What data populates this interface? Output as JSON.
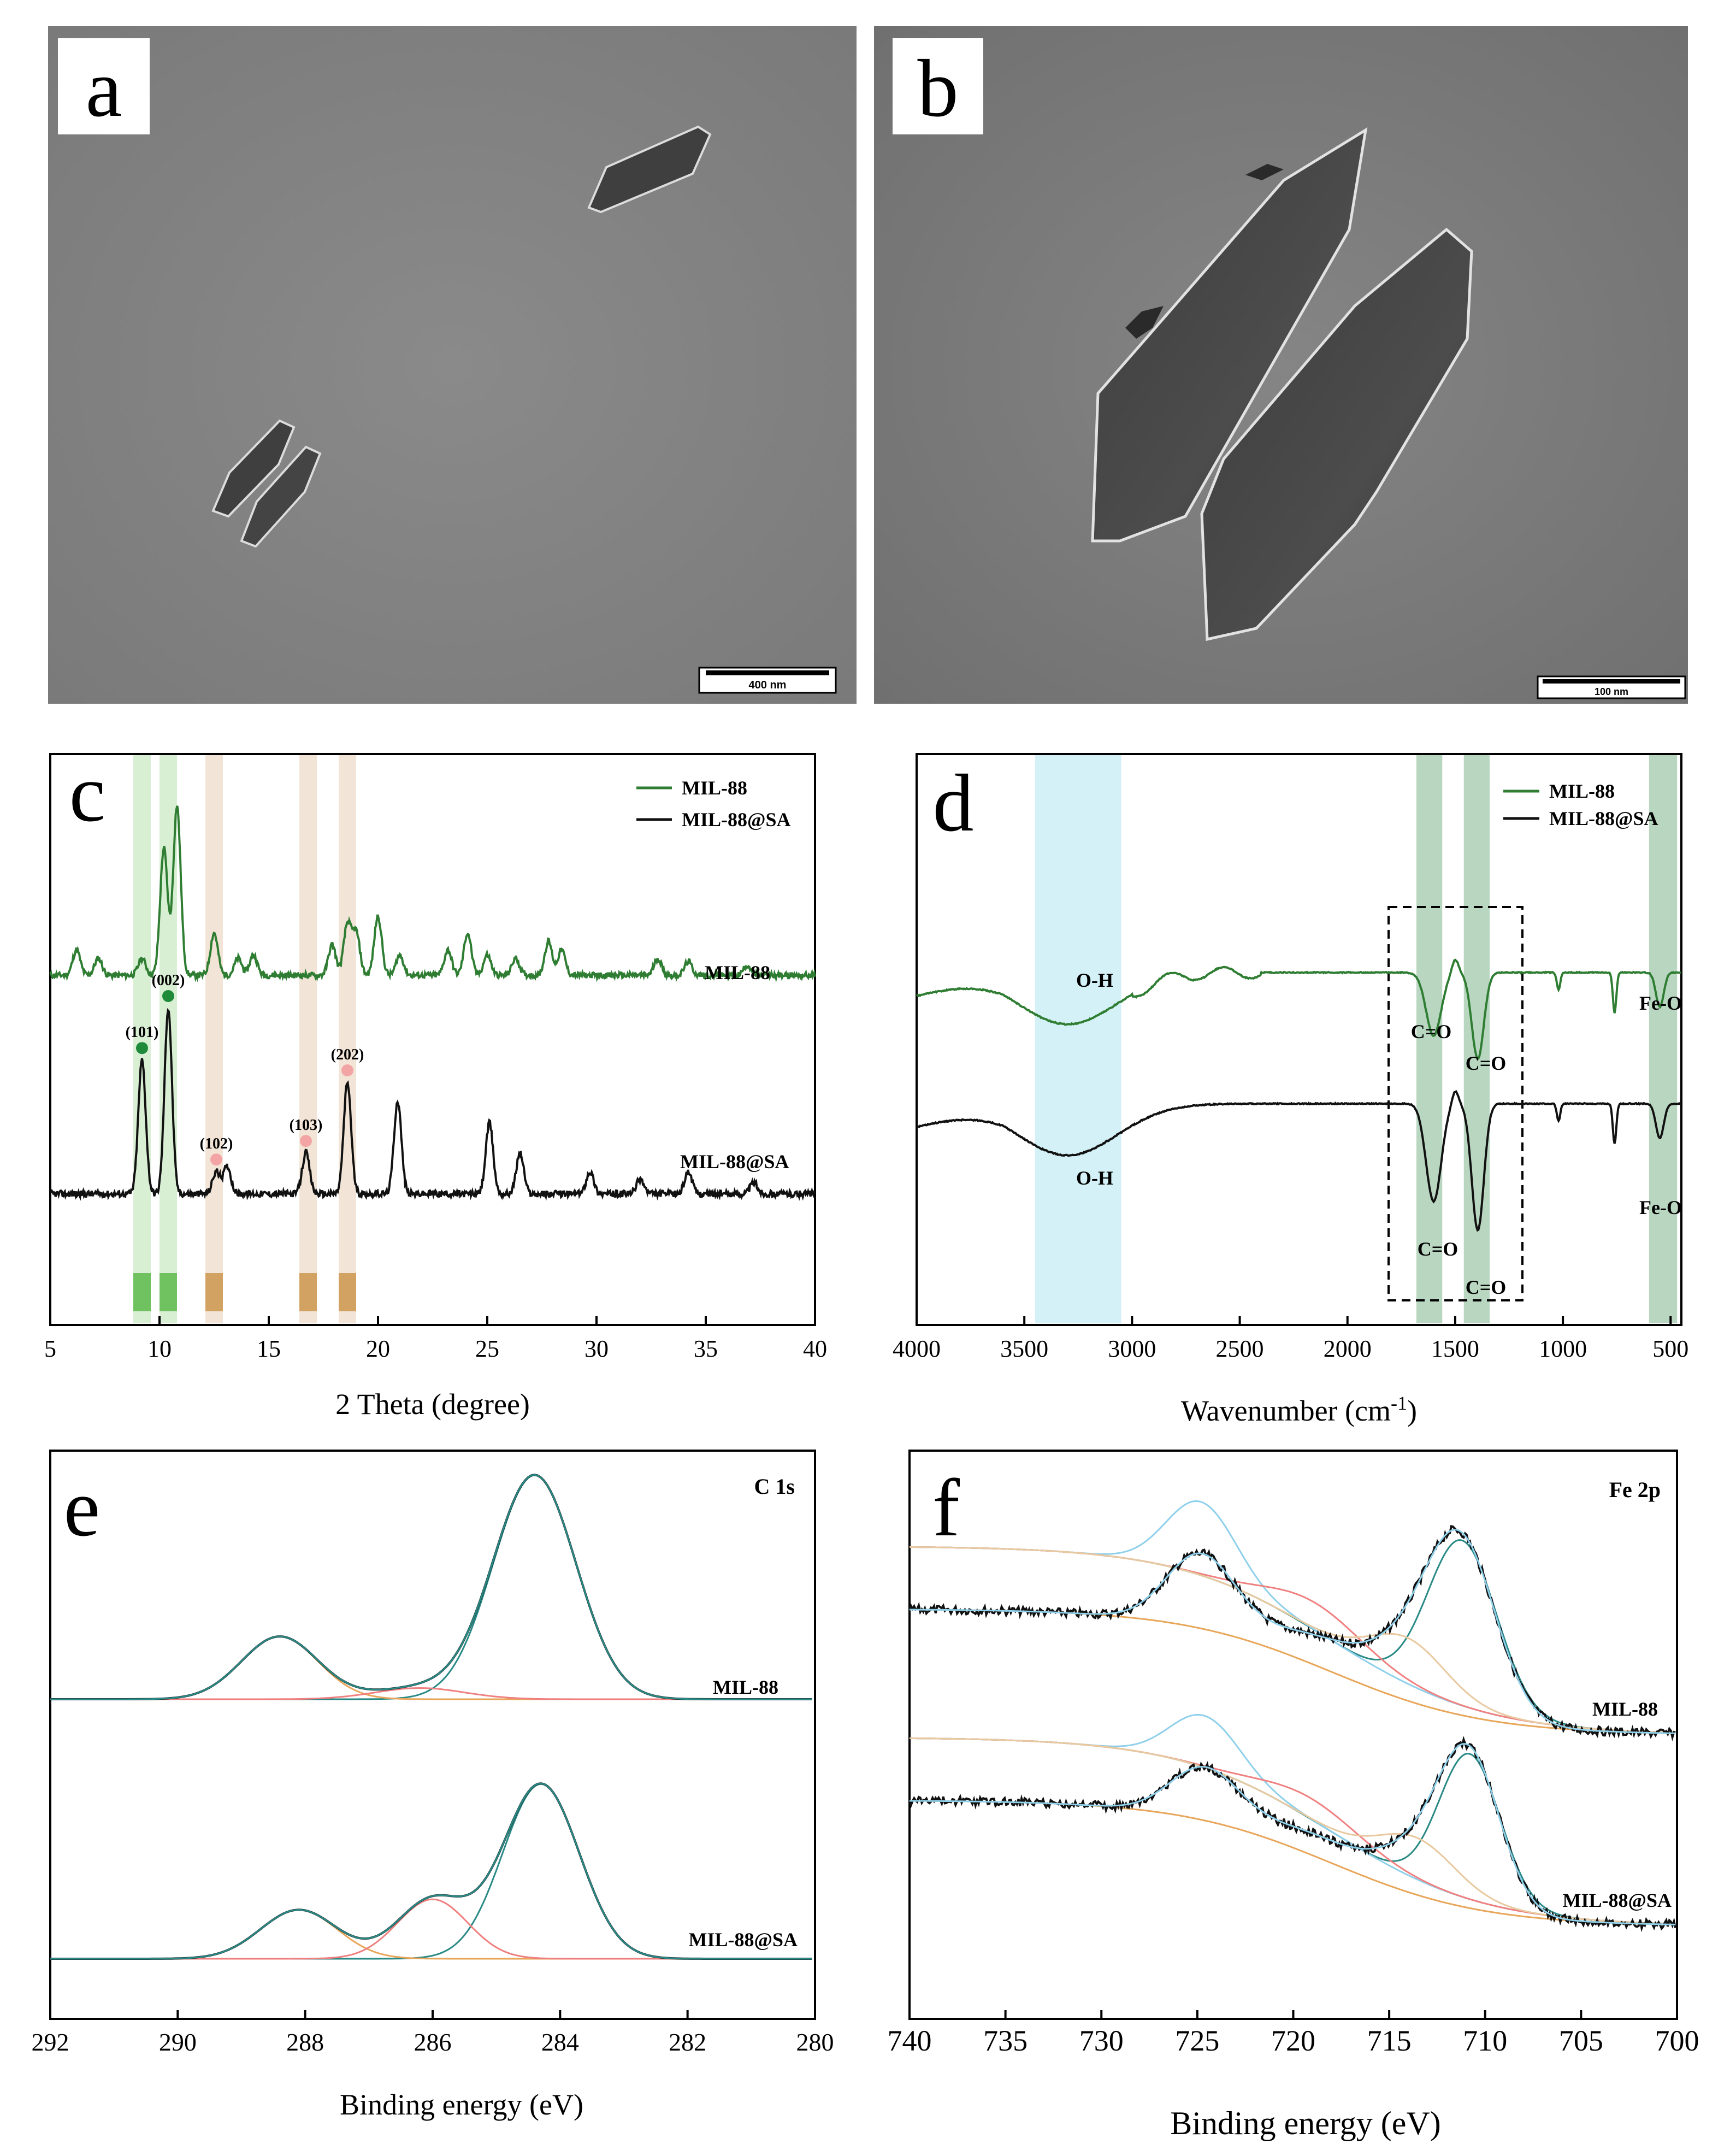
{
  "figure": {
    "panels": [
      {
        "id": "a",
        "letter": "a",
        "type": "tem-image",
        "scale_bar_label": "400 nm"
      },
      {
        "id": "b",
        "letter": "b",
        "type": "tem-image",
        "scale_bar_label": "100 nm"
      }
    ]
  },
  "colors": {
    "green": "#2e7d32",
    "black": "#111111",
    "red": "#f08080",
    "orange": "#e8a65a",
    "teal": "#2a8a86",
    "lightblue": "#8fd0ea",
    "olive": "#7a8a1a"
  },
  "chart_data": [
    {
      "panel": "c",
      "letter": "c",
      "type": "line",
      "xlabel": "2 Theta (degree)",
      "ylabel": "",
      "xlim": [
        5,
        40
      ],
      "xticks": [
        5,
        10,
        15,
        20,
        25,
        30,
        35,
        40
      ],
      "legend": {
        "position": "top-right",
        "entries": [
          "MIL-88",
          "MIL-88@SA"
        ]
      },
      "series": [
        {
          "name": "MIL-88",
          "label": "MIL-88",
          "color": "#2e7d32",
          "peaks": [
            [
              6.2,
              0.15
            ],
            [
              7.2,
              0.1
            ],
            [
              9.2,
              0.1
            ],
            [
              10.2,
              0.75
            ],
            [
              10.8,
              1.0
            ],
            [
              12.5,
              0.25
            ],
            [
              13.6,
              0.1
            ],
            [
              14.3,
              0.12
            ],
            [
              17.9,
              0.18
            ],
            [
              18.6,
              0.3
            ],
            [
              19.0,
              0.25
            ],
            [
              20.0,
              0.35
            ],
            [
              21.0,
              0.12
            ],
            [
              23.2,
              0.15
            ],
            [
              24.1,
              0.25
            ],
            [
              25.0,
              0.12
            ],
            [
              26.3,
              0.1
            ],
            [
              27.8,
              0.2
            ],
            [
              28.4,
              0.15
            ],
            [
              32.8,
              0.1
            ],
            [
              34.2,
              0.08
            ],
            [
              36.9,
              0.06
            ]
          ]
        },
        {
          "name": "MIL-88@SA",
          "label": "MIL-88@SA",
          "color": "#111111",
          "peaks": [
            [
              9.2,
              0.72
            ],
            [
              10.4,
              1.0
            ],
            [
              12.6,
              0.12
            ],
            [
              13.1,
              0.15
            ],
            [
              16.7,
              0.22
            ],
            [
              18.6,
              0.6
            ],
            [
              20.9,
              0.5
            ],
            [
              25.1,
              0.38
            ],
            [
              26.5,
              0.22
            ],
            [
              29.7,
              0.12
            ],
            [
              32.0,
              0.08
            ],
            [
              34.2,
              0.12
            ],
            [
              37.2,
              0.06
            ]
          ]
        }
      ],
      "peak_labels": [
        {
          "text": "(101)",
          "x": 9.2
        },
        {
          "text": "(002)",
          "x": 10.4
        },
        {
          "text": "(102)",
          "x": 12.6
        },
        {
          "text": "(103)",
          "x": 16.7
        },
        {
          "text": "(202)",
          "x": 18.6
        }
      ],
      "bands": [
        {
          "x": 9.2,
          "color": "green"
        },
        {
          "x": 10.4,
          "color": "green"
        },
        {
          "x": 12.5,
          "color": "tan"
        },
        {
          "x": 16.8,
          "color": "tan"
        },
        {
          "x": 18.6,
          "color": "tan"
        }
      ]
    },
    {
      "panel": "d",
      "letter": "d",
      "type": "line",
      "xlabel": "Wavenumber (cm",
      "xlabel_sup": "-1",
      "xlabel_end": ")",
      "xlim": [
        4000,
        450
      ],
      "xticks": [
        4000,
        3500,
        3000,
        2500,
        2000,
        1500,
        1000,
        500
      ],
      "legend": {
        "position": "top-right",
        "entries": [
          "MIL-88",
          "MIL-88@SA"
        ]
      },
      "series": [
        {
          "name": "MIL-88",
          "color": "#2e7d32"
        },
        {
          "name": "MIL-88@SA",
          "color": "#111111"
        }
      ],
      "annotations": [
        "O-H",
        "C=O",
        "C=O",
        "Fe-O",
        "O-H",
        "C=O",
        "C=O",
        "Fe-O"
      ],
      "bands": [
        {
          "from": 3450,
          "to": 3050,
          "color": "cyan"
        },
        {
          "from": 1680,
          "to": 1560,
          "color": "green"
        },
        {
          "from": 1460,
          "to": 1340,
          "color": "green"
        },
        {
          "from": 600,
          "to": 470,
          "color": "green"
        }
      ]
    },
    {
      "panel": "e",
      "letter": "e",
      "type": "line",
      "title": "C 1s",
      "xlabel": "Binding energy (eV)",
      "xlim": [
        292,
        280
      ],
      "xticks": [
        292,
        290,
        288,
        286,
        284,
        282,
        280
      ],
      "spectra": [
        {
          "label": "MIL-88",
          "components": [
            {
              "center": 284.4,
              "height": 1.0,
              "width": 0.65
            },
            {
              "center": 288.4,
              "height": 0.28,
              "width": 0.6
            },
            {
              "center": 286.2,
              "height": 0.05,
              "width": 0.7
            }
          ]
        },
        {
          "label": "MIL-88@SA",
          "components": [
            {
              "center": 284.3,
              "height": 1.0,
              "width": 0.6
            },
            {
              "center": 288.1,
              "height": 0.28,
              "width": 0.6
            },
            {
              "center": 286.0,
              "height": 0.34,
              "width": 0.55
            }
          ]
        }
      ]
    },
    {
      "panel": "f",
      "letter": "f",
      "type": "line",
      "title": "Fe 2p",
      "xlabel": "Binding energy (eV)",
      "xlim": [
        740,
        700
      ],
      "xticks": [
        740,
        735,
        730,
        725,
        720,
        715,
        710,
        705,
        700
      ],
      "spectra": [
        {
          "label": "MIL-88",
          "components": [
            {
              "center": 711.2,
              "height": 0.72,
              "width": 1.8
            },
            {
              "center": 724.8,
              "height": 0.32,
              "width": 1.8
            },
            {
              "center": 718.8,
              "height": 0.12,
              "width": 2.5
            },
            {
              "center": 714.0,
              "height": 0.2,
              "width": 2.0
            }
          ]
        },
        {
          "label": "MIL-88@SA",
          "components": [
            {
              "center": 710.8,
              "height": 0.7,
              "width": 1.6
            },
            {
              "center": 724.6,
              "height": 0.25,
              "width": 1.8
            },
            {
              "center": 719.0,
              "height": 0.1,
              "width": 2.5
            },
            {
              "center": 713.5,
              "height": 0.2,
              "width": 2.0
            }
          ]
        }
      ]
    }
  ]
}
